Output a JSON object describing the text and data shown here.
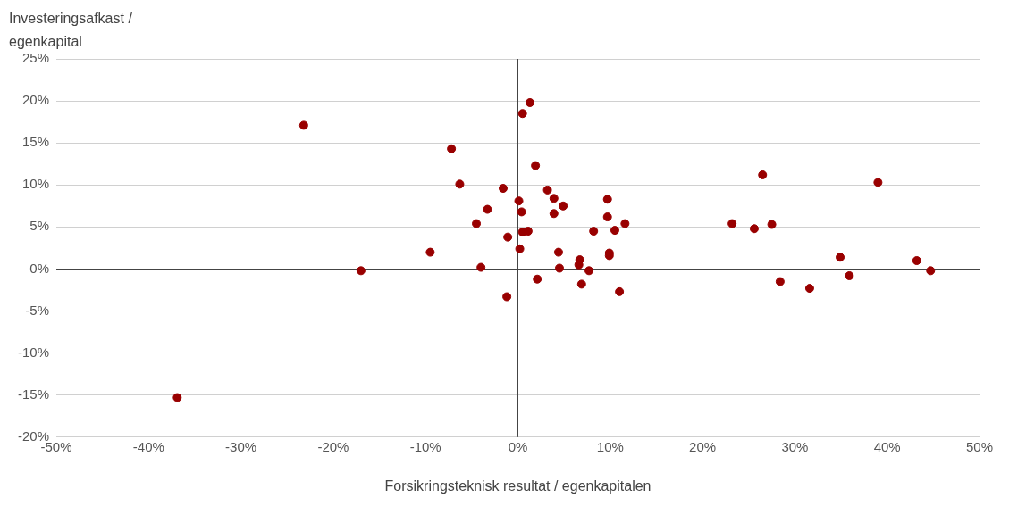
{
  "chart_data": {
    "type": "scatter",
    "xlabel": "Forsikringsteknisk resultat / egenkapitalen",
    "ylabel": "Investeringsafkast / egenkapital",
    "series": [
      {
        "color": "#990000",
        "x": [
          -23.2,
          -17.0,
          -36.9,
          -9.5,
          -7.2,
          -6.3,
          -4.5,
          -3.3,
          -4.0,
          -1.6,
          -1.1,
          -1.2,
          0.1,
          0.4,
          0.2,
          0.5,
          1.1,
          0.5,
          1.3,
          1.9,
          2.1,
          3.2,
          3.9,
          3.9,
          4.9,
          4.4,
          4.5,
          6.9,
          6.7,
          6.6,
          7.7,
          8.2,
          9.7,
          9.7,
          9.9,
          9.9,
          10.5,
          11.6,
          11.0,
          23.2,
          25.6,
          26.5,
          27.5,
          28.4,
          31.6,
          34.9,
          35.9,
          39.0,
          43.2,
          44.7
        ],
        "values": [
          17.1,
          -0.2,
          -15.3,
          2.0,
          14.3,
          10.1,
          5.4,
          7.1,
          0.2,
          9.6,
          3.8,
          -3.3,
          8.1,
          6.8,
          2.4,
          4.4,
          4.5,
          18.5,
          19.8,
          12.3,
          -1.2,
          9.4,
          8.4,
          6.6,
          7.5,
          2.0,
          0.1,
          -1.8,
          1.1,
          0.5,
          -0.2,
          4.5,
          8.3,
          6.2,
          1.9,
          1.6,
          4.6,
          5.4,
          -2.7,
          5.4,
          4.8,
          11.2,
          5.3,
          -1.5,
          -2.3,
          1.4,
          -0.8,
          10.3,
          1.0,
          -0.2
        ]
      }
    ],
    "xlim": [
      -50,
      50
    ],
    "xticks": [
      {
        "value": -50,
        "label": "-50%"
      },
      {
        "value": -40,
        "label": "-40%"
      },
      {
        "value": -30,
        "label": "-30%"
      },
      {
        "value": -20,
        "label": "-20%"
      },
      {
        "value": -10,
        "label": "-10%"
      },
      {
        "value": 0,
        "label": "0%"
      },
      {
        "value": 10,
        "label": "10%"
      },
      {
        "value": 20,
        "label": "20%"
      },
      {
        "value": 30,
        "label": "30%"
      },
      {
        "value": 40,
        "label": "40%"
      },
      {
        "value": 50,
        "label": "50%"
      }
    ],
    "ylim": [
      -20,
      25
    ],
    "yticks": [
      {
        "value": -20,
        "label": "-20%"
      },
      {
        "value": -15,
        "label": "-15%"
      },
      {
        "value": -10,
        "label": "-10%"
      },
      {
        "value": -5,
        "label": "-5%"
      },
      {
        "value": 0,
        "label": "0%"
      },
      {
        "value": 5,
        "label": "5%"
      },
      {
        "value": 10,
        "label": "10%"
      },
      {
        "value": 15,
        "label": "15%"
      },
      {
        "value": 20,
        "label": "20%"
      },
      {
        "value": 25,
        "label": "25%"
      }
    ],
    "ref_lines": [
      {
        "axis": "x",
        "value": 0,
        "color": "#444444"
      }
    ],
    "grid": "y",
    "marker": "circle",
    "legend": false
  }
}
